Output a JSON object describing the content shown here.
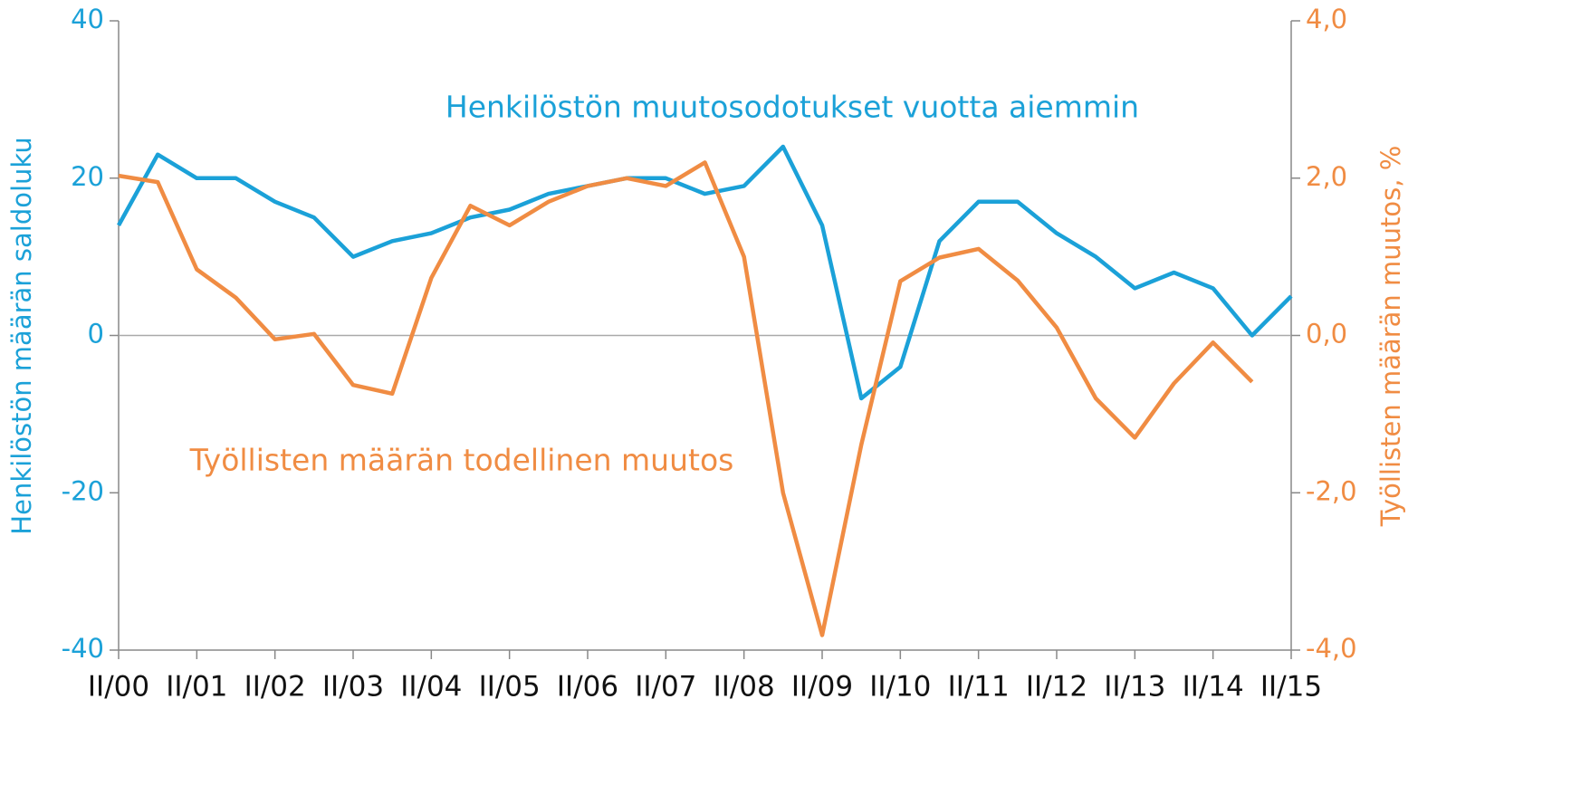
{
  "chart_data": {
    "type": "line",
    "annotations": [
      "Henkilöstön muutosodotukset vuotta aiemmin",
      "Työllisten määrän todellinen muutos"
    ],
    "ylabel": "Henkilöstön määrän saldoluku",
    "y2label": "Työllisten määrän muutos, %",
    "categories": [
      "II/00",
      null,
      "II/01",
      null,
      "II/02",
      null,
      "II/03",
      null,
      "II/04",
      null,
      "II/05",
      null,
      "II/06",
      null,
      "II/07",
      null,
      "II/08",
      null,
      "II/09",
      null,
      "II/10",
      null,
      "II/11",
      null,
      "II/12",
      null,
      "II/13",
      null,
      "II/14",
      null,
      "II/15"
    ],
    "series": [
      {
        "name": "Henkilöstön muutosodotukset vuotta aiemmin",
        "color": "#1ba1d8",
        "axis": "y",
        "values": [
          14,
          23,
          20,
          20,
          17,
          15,
          10,
          12,
          13,
          15,
          16,
          18,
          19,
          20,
          20,
          18,
          19,
          24,
          14,
          -8,
          -4,
          12,
          17,
          17,
          13,
          10,
          6,
          8,
          6,
          0,
          5
        ]
      },
      {
        "name": "Työllisten määrän todellinen muutos",
        "color": "#f08c43",
        "axis": "y2",
        "values": [
          2.03,
          1.95,
          0.84,
          0.48,
          -0.05,
          0.02,
          -0.63,
          -0.74,
          0.73,
          1.65,
          1.4,
          1.7,
          1.9,
          2.0,
          1.9,
          2.2,
          1.0,
          -2.0,
          -3.81,
          -1.39,
          0.69,
          0.99,
          1.1,
          0.7,
          0.1,
          -0.8,
          -1.3,
          -0.61,
          -0.09,
          -0.59,
          null
        ]
      }
    ],
    "ylim": [
      -40,
      40
    ],
    "yticks": [
      40,
      20,
      0,
      -20,
      -40
    ],
    "y2lim": [
      -4,
      4
    ],
    "y2ticks": [
      {
        "value": 4,
        "label": "4,0"
      },
      {
        "value": 2,
        "label": "2,0"
      },
      {
        "value": 0,
        "label": "0,0"
      },
      {
        "value": -2,
        "label": "-2,0"
      },
      {
        "value": -4,
        "label": "-4,0"
      }
    ]
  }
}
